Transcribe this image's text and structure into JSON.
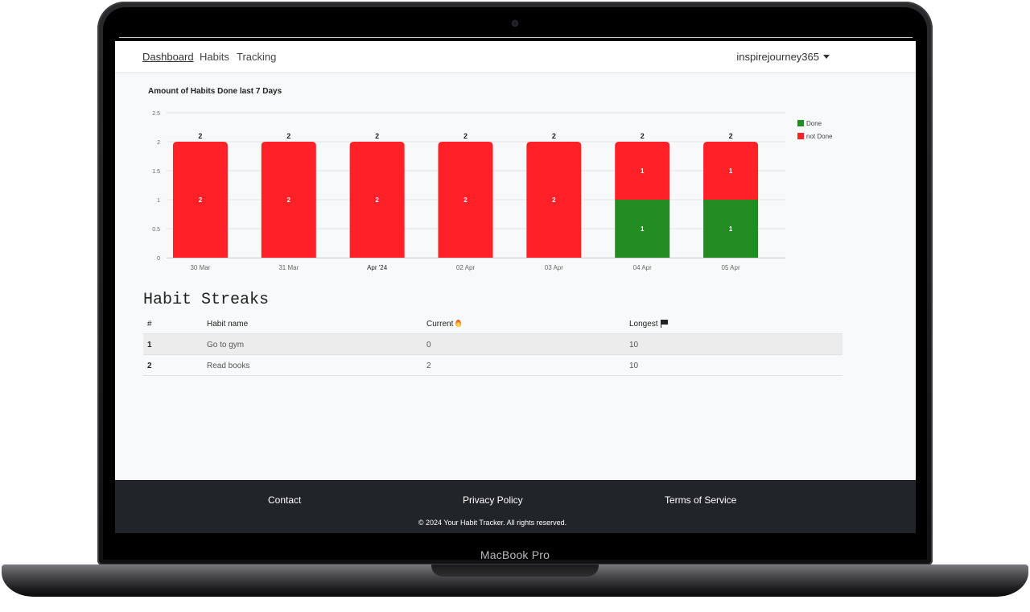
{
  "device": {
    "brand_label": "MacBook Pro"
  },
  "nav": {
    "links": [
      {
        "label": "Dashboard",
        "active": true
      },
      {
        "label": "Habits",
        "active": false
      },
      {
        "label": "Tracking",
        "active": false
      }
    ],
    "user": "inspirejourney365"
  },
  "chart_data": {
    "type": "bar",
    "stacked": true,
    "title": "Amount of Habits Done last 7 Days",
    "categories": [
      "30 Mar",
      "31 Mar",
      "Apr '24",
      "02 Apr",
      "03 Apr",
      "04 Apr",
      "05 Apr"
    ],
    "series": [
      {
        "name": "Done",
        "color": "#228b22",
        "values": [
          0,
          0,
          0,
          0,
          0,
          1,
          1
        ]
      },
      {
        "name": "not Done",
        "color": "#ff2127",
        "values": [
          2,
          2,
          2,
          2,
          2,
          1,
          1
        ]
      }
    ],
    "totals": [
      2,
      2,
      2,
      2,
      2,
      2,
      2
    ],
    "ylim": [
      0,
      2.5
    ],
    "yticks": [
      "0",
      "0.5",
      "1",
      "1.5",
      "2",
      "2.5"
    ],
    "grid": true,
    "legend_position": "top-right",
    "xlabel": "",
    "ylabel": ""
  },
  "streaks": {
    "title": "Habit Streaks",
    "headers": {
      "index": "#",
      "name": "Habit name",
      "current": "Current",
      "longest": "Longest"
    },
    "rows": [
      {
        "index": "1",
        "name": "Go to gym",
        "current": "0",
        "longest": "10"
      },
      {
        "index": "2",
        "name": "Read books",
        "current": "2",
        "longest": "10"
      }
    ]
  },
  "footer": {
    "links": [
      "Contact",
      "Privacy Policy",
      "Terms of Service"
    ],
    "copyright": "© 2024 Your Habit Tracker. All rights reserved."
  }
}
